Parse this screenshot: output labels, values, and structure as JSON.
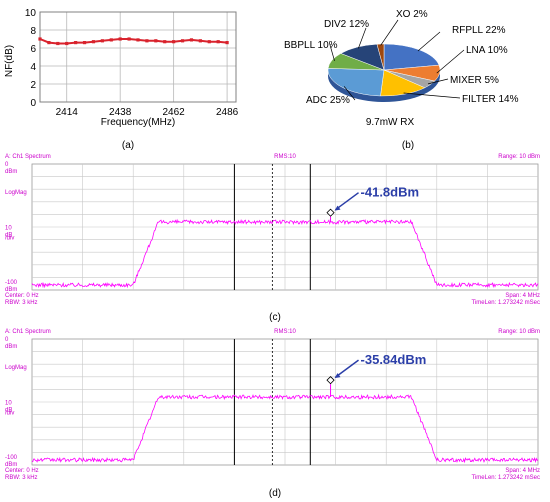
{
  "colors": {
    "nf_line": "#d9232d",
    "spectrum": "#ff00ff",
    "annotation": "#2b3ea8",
    "grid": "#b8b8b8",
    "frame_text": "#cc00cc"
  },
  "chart_data": [
    {
      "id": "a",
      "type": "line",
      "caption": "(a)",
      "title": "",
      "xlabel": "Frequency(MHz)",
      "ylabel": "NF(dB)",
      "xlim": [
        2402,
        2490
      ],
      "ylim": [
        0,
        10
      ],
      "xticks": [
        "2414",
        "2438",
        "2462",
        "2486"
      ],
      "yticks": [
        "0",
        "2",
        "4",
        "6",
        "8",
        "10"
      ],
      "grid": true,
      "series": [
        {
          "x": [
            2402,
            2406,
            2410,
            2414,
            2418,
            2422,
            2426,
            2430,
            2434,
            2438,
            2442,
            2446,
            2450,
            2454,
            2458,
            2462,
            2466,
            2470,
            2474,
            2478,
            2482,
            2486
          ],
          "y": [
            7.0,
            6.6,
            6.5,
            6.5,
            6.6,
            6.6,
            6.7,
            6.8,
            6.9,
            7.0,
            7.0,
            6.9,
            6.8,
            6.8,
            6.7,
            6.7,
            6.8,
            6.9,
            6.8,
            6.7,
            6.7,
            6.6
          ]
        }
      ]
    },
    {
      "id": "b",
      "type": "pie",
      "caption": "(b)",
      "title": "9.7mW RX",
      "slices": [
        {
          "label": "RFPLL 22%",
          "value": 22,
          "color": "#4472c4"
        },
        {
          "label": "LNA 10%",
          "value": 10,
          "color": "#ed7d31"
        },
        {
          "label": "MIXER 5%",
          "value": 5,
          "color": "#a5a5a5"
        },
        {
          "label": "FILTER 14%",
          "value": 14,
          "color": "#ffc000"
        },
        {
          "label": "ADC 25%",
          "value": 25,
          "color": "#5b9bd5"
        },
        {
          "label": "BBPLL 10%",
          "value": 10,
          "color": "#70ad47"
        },
        {
          "label": "DIV2 12%",
          "value": 12,
          "color": "#264478"
        },
        {
          "label": "XO 2%",
          "value": 2,
          "color": "#9e480e"
        }
      ]
    },
    {
      "id": "c",
      "type": "line",
      "caption": "(c)",
      "header_left": "A: Ch1 Spectrum",
      "header_center": "RMS:10",
      "header_right": "Range: 10 dBm",
      "y_labels": [
        {
          "top": "0",
          "bottom": "dBm"
        },
        {
          "top": "LogMag",
          "bottom": ""
        },
        {
          "top": "10",
          "bottom": "dB"
        },
        {
          "top": "/div",
          "bottom": ""
        },
        {
          "top": "-100",
          "bottom": "dBm"
        }
      ],
      "footer_left_1": "Center: 0 Hz",
      "footer_left_2": "RBW: 3 kHz",
      "footer_right_1": "Span: 4 MHz",
      "footer_right_2": "TimeLen: 1.273242 mSec",
      "marker_label": "-41.8dBm",
      "xlim": [
        -2,
        2
      ],
      "ylim": [
        -100,
        0
      ],
      "signal_band": [
        -1.1,
        1.1
      ],
      "passband_level": -46,
      "noise_floor": -96,
      "tone": {
        "x": 0.36,
        "y": -41.8
      }
    },
    {
      "id": "d",
      "type": "line",
      "caption": "(d)",
      "header_left": "A: Ch1 Spectrum",
      "header_center": "RMS:10",
      "header_right": "Range: 10 dBm",
      "y_labels": [
        {
          "top": "0",
          "bottom": "dBm"
        },
        {
          "top": "LogMag",
          "bottom": ""
        },
        {
          "top": "10",
          "bottom": "dB"
        },
        {
          "top": "/div",
          "bottom": ""
        },
        {
          "top": "-100",
          "bottom": "dBm"
        }
      ],
      "footer_left_1": "Center: 0 Hz",
      "footer_left_2": "RBW: 3 kHz",
      "footer_right_1": "Span: 4 MHz",
      "footer_right_2": "TimeLen: 1.273242 mSec",
      "marker_label": "-35.84dBm",
      "xlim": [
        -2,
        2
      ],
      "ylim": [
        -100,
        0
      ],
      "signal_band": [
        -1.1,
        1.1
      ],
      "passband_level": -46,
      "noise_floor": -96,
      "tone": {
        "x": 0.36,
        "y": -35.84
      }
    }
  ]
}
